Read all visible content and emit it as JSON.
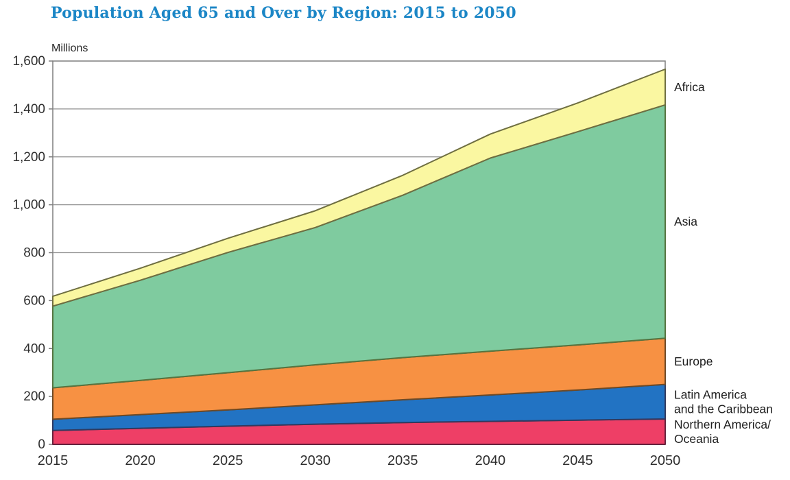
{
  "title": "Population Aged 65 and Over by Region: 2015 to 2050",
  "title_color": "#1b86c6",
  "chart_data": {
    "type": "area",
    "stacked": true,
    "title": "Population Aged 65 and Over by Region: 2015 to 2050",
    "ylabel": "Millions",
    "xlabel": "",
    "grid": true,
    "legend_position": "right-edge-annotations",
    "ylim": [
      0,
      1600
    ],
    "y_tick_step": 200,
    "y_tick_labels": [
      "0",
      "200",
      "400",
      "600",
      "800",
      "1,000",
      "1,200",
      "1,400",
      "1,600"
    ],
    "x": [
      2015,
      2020,
      2025,
      2030,
      2035,
      2040,
      2045,
      2050
    ],
    "x_tick_labels": [
      "2015",
      "2020",
      "2025",
      "2030",
      "2035",
      "2040",
      "2045",
      "2050"
    ],
    "series": [
      {
        "name": "Northern America/Oceania",
        "label_lines": [
          "Northern America/",
          "Oceania"
        ],
        "color": "#ee3f66",
        "edge_color": "#66233d",
        "values": [
          58,
          67,
          76,
          84,
          91,
          96,
          101,
          106
        ]
      },
      {
        "name": "Latin America and the Caribbean",
        "label_lines": [
          "Latin America",
          "and the Caribbean"
        ],
        "color": "#2273c3",
        "edge_color": "#313a60",
        "values": [
          47,
          57,
          68,
          81,
          95,
          110,
          126,
          144
        ]
      },
      {
        "name": "Europe",
        "label_lines": [
          "Europe"
        ],
        "color": "#f79143",
        "edge_color": "#6e4a26",
        "values": [
          131,
          143,
          155,
          167,
          176,
          183,
          188,
          193
        ]
      },
      {
        "name": "Asia",
        "label_lines": [
          "Asia"
        ],
        "color": "#7fcb9f",
        "edge_color": "#567440",
        "values": [
          341,
          418,
          502,
          573,
          678,
          806,
          890,
          974
        ]
      },
      {
        "name": "Africa",
        "label_lines": [
          "Africa"
        ],
        "color": "#faf7a1",
        "edge_color": "#6e6e41",
        "values": [
          41,
          50,
          59,
          70,
          83,
          100,
          120,
          149
        ]
      }
    ],
    "totals": [
      618,
      735,
      860,
      975,
      1123,
      1295,
      1425,
      1566
    ],
    "colors": {
      "gridline": "#8f8f8f",
      "plot_border": "#7e7e7e",
      "tick_text": "#2e2e2e",
      "annotation_text": "#1d1d1d"
    }
  }
}
